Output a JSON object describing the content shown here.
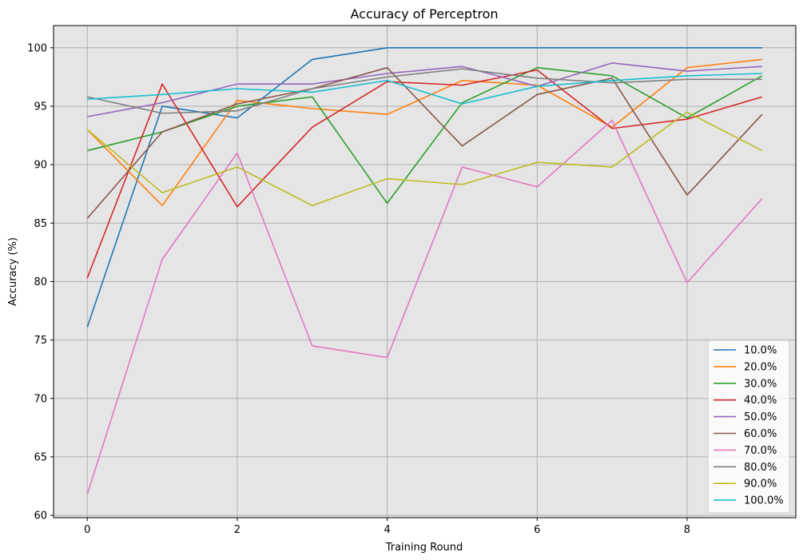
{
  "chart_data": {
    "type": "line",
    "title": "Accuracy of Perceptron",
    "xlabel": "Training Round",
    "ylabel": "Accuracy (%)",
    "x": [
      0,
      1,
      2,
      3,
      4,
      5,
      6,
      7,
      8,
      9
    ],
    "xlim": [
      -0.45,
      9.45
    ],
    "ylim": [
      59.8,
      101.9
    ],
    "xticks": [
      0,
      2,
      4,
      6,
      8
    ],
    "yticks": [
      60,
      65,
      70,
      75,
      80,
      85,
      90,
      95,
      100
    ],
    "grid": true,
    "legend_position": "lower-right",
    "series": [
      {
        "name": "10.0%",
        "color": "#1f77b4",
        "values": [
          76.1,
          95.0,
          94.0,
          99.0,
          100.0,
          100.0,
          100.0,
          100.0,
          100.0,
          100.0
        ]
      },
      {
        "name": "20.0%",
        "color": "#ff7f0e",
        "values": [
          93.0,
          86.5,
          95.5,
          94.8,
          94.3,
          97.2,
          96.8,
          93.2,
          98.3,
          99.0
        ]
      },
      {
        "name": "30.0%",
        "color": "#2ca02c",
        "values": [
          91.2,
          92.8,
          95.0,
          95.8,
          86.7,
          95.3,
          98.3,
          97.6,
          94.0,
          97.6
        ]
      },
      {
        "name": "40.0%",
        "color": "#d62728",
        "values": [
          80.3,
          96.9,
          86.4,
          93.2,
          97.1,
          96.8,
          98.1,
          93.1,
          93.9,
          95.8
        ]
      },
      {
        "name": "50.0%",
        "color": "#9467bd",
        "values": [
          94.1,
          95.3,
          96.9,
          96.9,
          97.8,
          98.4,
          96.7,
          98.7,
          98.0,
          98.4
        ]
      },
      {
        "name": "60.0%",
        "color": "#8c564b",
        "values": [
          85.4,
          92.8,
          95.2,
          96.5,
          98.3,
          91.6,
          96.0,
          97.4,
          87.4,
          94.3
        ]
      },
      {
        "name": "70.0%",
        "color": "#e377c2",
        "values": [
          61.8,
          81.9,
          91.0,
          74.5,
          73.5,
          89.8,
          88.1,
          93.8,
          79.9,
          87.1
        ]
      },
      {
        "name": "80.0%",
        "color": "#7f7f7f",
        "values": [
          95.8,
          94.4,
          94.6,
          96.5,
          97.5,
          98.2,
          97.4,
          97.0,
          97.3,
          97.3
        ]
      },
      {
        "name": "90.0%",
        "color": "#bcbd22",
        "values": [
          93.0,
          87.6,
          89.8,
          86.5,
          88.8,
          88.3,
          90.2,
          89.8,
          94.5,
          91.2
        ]
      },
      {
        "name": "100.0%",
        "color": "#17becf",
        "values": [
          95.6,
          96.0,
          96.5,
          96.2,
          97.2,
          95.2,
          96.7,
          97.2,
          97.6,
          97.8
        ]
      }
    ]
  }
}
